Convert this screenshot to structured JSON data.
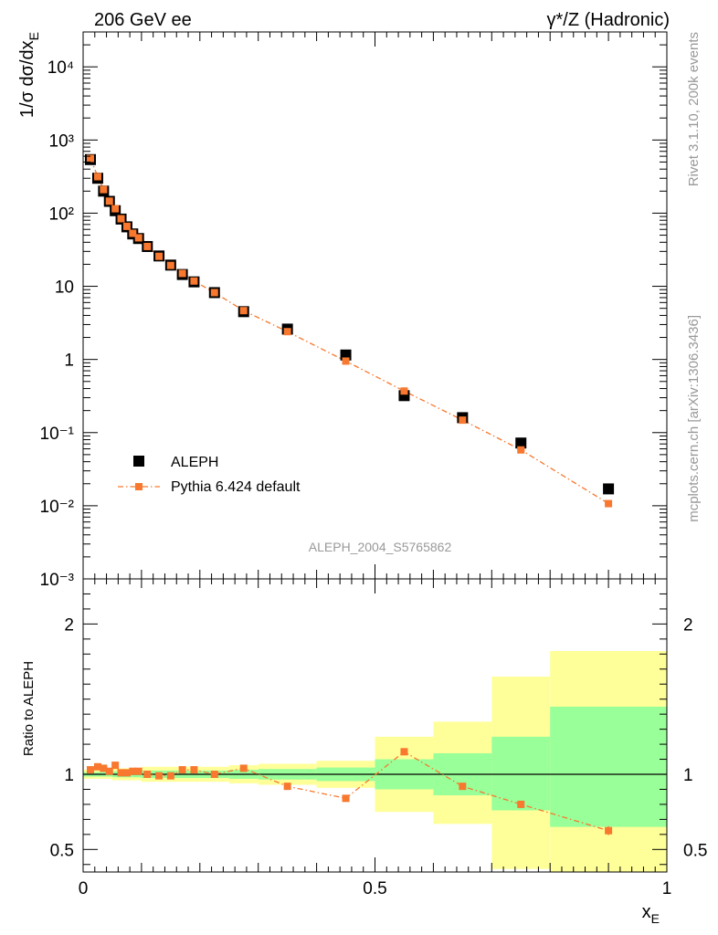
{
  "header": {
    "left_label": "206 GeV ee",
    "right_label": "γ*/Z (Hadronic)"
  },
  "side_labels": {
    "upper": "Rivet 3.1.10,  200k events",
    "lower": "mcplots.cern.ch [arXiv:1306.3436]"
  },
  "watermark": "ALEPH_2004_S5765862",
  "legend": {
    "data_label": "ALEPH",
    "mc_label": "Pythia 6.424 default"
  },
  "colors": {
    "data": "#000000",
    "mc": "#f7782e",
    "band_inner": "#99ff99",
    "band_outer": "#ffff99",
    "axis": "#000000",
    "watermark": "#999999"
  },
  "chart_data": [
    {
      "type": "scatter",
      "panel": "main",
      "ylabel": "1/σ dσ/dx_E",
      "yscale": "log",
      "xlim": [
        0,
        1
      ],
      "ylim": [
        0.001,
        30000
      ],
      "y_ticks": [
        0.001,
        0.01,
        0.1,
        1,
        10,
        100,
        1000,
        10000
      ],
      "y_tick_labels": [
        "10⁻³",
        "10⁻²",
        "10⁻¹",
        "1",
        "10",
        "10²",
        "10³",
        "10⁴"
      ],
      "legend_position": "bottom-left",
      "series": [
        {
          "name": "ALEPH",
          "marker": "square",
          "x": [
            0.0125,
            0.025,
            0.035,
            0.045,
            0.055,
            0.065,
            0.075,
            0.085,
            0.095,
            0.11,
            0.13,
            0.15,
            0.17,
            0.19,
            0.225,
            0.275,
            0.35,
            0.45,
            0.55,
            0.65,
            0.75,
            0.9
          ],
          "y": [
            540,
            300,
            200,
            145,
            108,
            83,
            65,
            52,
            45,
            35,
            26,
            19.5,
            14.5,
            11.5,
            8.2,
            4.5,
            2.6,
            1.15,
            0.32,
            0.16,
            0.072,
            0.017
          ]
        },
        {
          "name": "Pythia 6.424 default",
          "marker": "small-square",
          "line": "dash-dot",
          "x": [
            0.0125,
            0.025,
            0.035,
            0.045,
            0.055,
            0.065,
            0.075,
            0.085,
            0.095,
            0.11,
            0.13,
            0.15,
            0.17,
            0.19,
            0.225,
            0.275,
            0.35,
            0.45,
            0.55,
            0.65,
            0.75,
            0.9
          ],
          "y": [
            560,
            315,
            210,
            146,
            115,
            84,
            66,
            53,
            46,
            35,
            25.7,
            19.3,
            15,
            11.8,
            8.2,
            4.65,
            2.4,
            0.95,
            0.37,
            0.148,
            0.058,
            0.0107
          ]
        }
      ]
    },
    {
      "type": "line",
      "panel": "ratio",
      "xlabel": "x_E",
      "ylabel": "Ratio to ALEPH",
      "xlim": [
        0,
        1
      ],
      "ylim": [
        0.35,
        2.3
      ],
      "x_ticks": [
        0,
        0.5,
        1
      ],
      "x_tick_labels": [
        "0",
        "0.5",
        "1"
      ],
      "y_ticks": [
        0.5,
        1,
        2
      ],
      "y_tick_labels": [
        "0.5",
        "1",
        "2"
      ],
      "reference_line": 1,
      "uncertainty_bands": [
        {
          "x0": 0.0,
          "x1": 0.05,
          "inner": [
            0.985,
            1.015
          ],
          "outer": [
            0.97,
            1.03
          ]
        },
        {
          "x0": 0.05,
          "x1": 0.1,
          "inner": [
            0.98,
            1.02
          ],
          "outer": [
            0.96,
            1.04
          ]
        },
        {
          "x0": 0.1,
          "x1": 0.2,
          "inner": [
            0.975,
            1.025
          ],
          "outer": [
            0.95,
            1.05
          ]
        },
        {
          "x0": 0.2,
          "x1": 0.25,
          "inner": [
            0.975,
            1.025
          ],
          "outer": [
            0.95,
            1.05
          ]
        },
        {
          "x0": 0.25,
          "x1": 0.3,
          "inner": [
            0.97,
            1.03
          ],
          "outer": [
            0.94,
            1.06
          ]
        },
        {
          "x0": 0.3,
          "x1": 0.4,
          "inner": [
            0.965,
            1.035
          ],
          "outer": [
            0.93,
            1.07
          ]
        },
        {
          "x0": 0.4,
          "x1": 0.5,
          "inner": [
            0.955,
            1.045
          ],
          "outer": [
            0.91,
            1.09
          ]
        },
        {
          "x0": 0.5,
          "x1": 0.6,
          "inner": [
            0.9,
            1.1
          ],
          "outer": [
            0.75,
            1.25
          ]
        },
        {
          "x0": 0.6,
          "x1": 0.7,
          "inner": [
            0.86,
            1.14
          ],
          "outer": [
            0.67,
            1.35
          ]
        },
        {
          "x0": 0.7,
          "x1": 0.8,
          "inner": [
            0.76,
            1.25
          ],
          "outer": [
            0.37,
            1.65
          ]
        },
        {
          "x0": 0.8,
          "x1": 1.0,
          "inner": [
            0.65,
            1.45
          ],
          "outer": [
            0.32,
            1.82
          ]
        }
      ],
      "series": [
        {
          "name": "Pythia 6.424 default",
          "x": [
            0.0125,
            0.025,
            0.035,
            0.045,
            0.055,
            0.065,
            0.075,
            0.085,
            0.095,
            0.11,
            0.13,
            0.15,
            0.17,
            0.19,
            0.225,
            0.275,
            0.35,
            0.45,
            0.55,
            0.65,
            0.75,
            0.9
          ],
          "y": [
            1.03,
            1.05,
            1.04,
            1.02,
            1.06,
            1.01,
            1.01,
            1.02,
            1.02,
            1.0,
            0.99,
            0.99,
            1.03,
            1.03,
            1.0,
            1.04,
            0.92,
            0.84,
            1.15,
            0.92,
            0.8,
            0.625
          ],
          "yerr": [
            0.005,
            0.005,
            0.005,
            0.005,
            0.005,
            0.005,
            0.005,
            0.005,
            0.005,
            0.005,
            0.005,
            0.005,
            0.005,
            0.005,
            0.006,
            0.008,
            0.01,
            0.01,
            0.012,
            0.015,
            0.02,
            0.03
          ]
        }
      ]
    }
  ]
}
